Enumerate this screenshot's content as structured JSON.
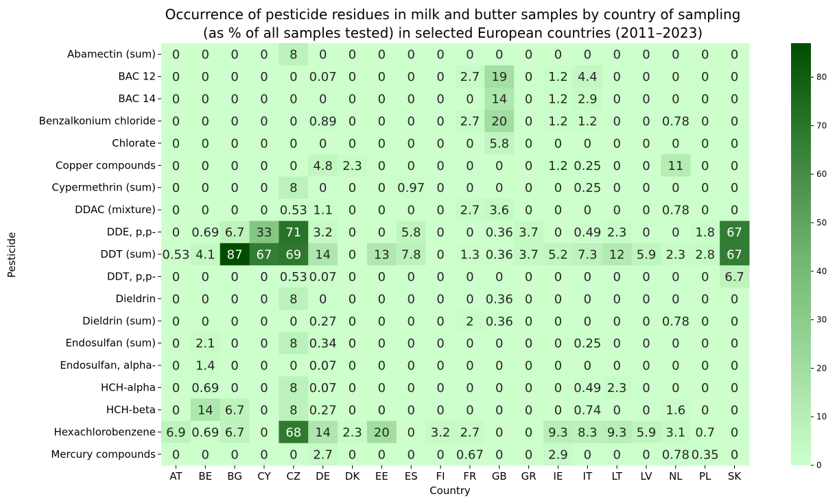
{
  "chart_data": {
    "type": "heatmap",
    "title": "Occurrence of pesticide residues in milk and butter samples by country of sampling",
    "subtitle": "(as % of all samples tested) in selected European countries (2011–2023)",
    "xlabel": "Country",
    "ylabel": "Pesticide",
    "x": [
      "AT",
      "BE",
      "BG",
      "CY",
      "CZ",
      "DE",
      "DK",
      "EE",
      "ES",
      "FI",
      "FR",
      "GB",
      "GR",
      "IE",
      "IT",
      "LT",
      "LV",
      "NL",
      "PL",
      "SK"
    ],
    "y": [
      "Abamectin (sum)",
      "BAC 12",
      "BAC 14",
      "Benzalkonium chloride",
      "Chlorate",
      "Copper compounds",
      "Cypermethrin (sum)",
      "DDAC (mixture)",
      "DDE, p,p-",
      "DDT (sum)",
      "DDT, p,p-",
      "Dieldrin",
      "Dieldrin (sum)",
      "Endosulfan (sum)",
      "Endosulfan, alpha-",
      "HCH-alpha",
      "HCH-beta",
      "Hexachlorobenzene",
      "Mercury compounds"
    ],
    "values": [
      [
        0,
        0,
        0,
        0,
        8,
        0,
        0,
        0,
        0,
        0,
        0,
        0,
        0,
        0,
        0,
        0,
        0,
        0,
        0,
        0
      ],
      [
        0,
        0,
        0,
        0,
        0,
        0.07,
        0,
        0,
        0,
        0,
        2.7,
        19,
        0,
        1.2,
        4.4,
        0,
        0,
        0,
        0,
        0
      ],
      [
        0,
        0,
        0,
        0,
        0,
        0,
        0,
        0,
        0,
        0,
        0,
        14,
        0,
        1.2,
        2.9,
        0,
        0,
        0,
        0,
        0
      ],
      [
        0,
        0,
        0,
        0,
        0,
        0.89,
        0,
        0,
        0,
        0,
        2.7,
        20,
        0,
        1.2,
        1.2,
        0,
        0,
        0.78,
        0,
        0
      ],
      [
        0,
        0,
        0,
        0,
        0,
        0,
        0,
        0,
        0,
        0,
        0,
        5.8,
        0,
        0,
        0,
        0,
        0,
        0,
        0,
        0
      ],
      [
        0,
        0,
        0,
        0,
        0,
        4.8,
        2.3,
        0,
        0,
        0,
        0,
        0,
        0,
        1.2,
        0.25,
        0,
        0,
        11,
        0,
        0
      ],
      [
        0,
        0,
        0,
        0,
        8,
        0,
        0,
        0,
        0.97,
        0,
        0,
        0,
        0,
        0,
        0.25,
        0,
        0,
        0,
        0,
        0
      ],
      [
        0,
        0,
        0,
        0,
        0.53,
        1.1,
        0,
        0,
        0,
        0,
        2.7,
        3.6,
        0,
        0,
        0,
        0,
        0,
        0.78,
        0,
        0
      ],
      [
        0,
        0.69,
        6.7,
        33,
        71,
        3.2,
        0,
        0,
        5.8,
        0,
        0,
        0.36,
        3.7,
        0,
        0.49,
        2.3,
        0,
        0,
        1.8,
        67
      ],
      [
        0.53,
        4.1,
        87,
        67,
        69,
        14,
        0,
        13,
        7.8,
        0,
        1.3,
        0.36,
        3.7,
        5.2,
        7.3,
        12,
        5.9,
        2.3,
        2.8,
        67
      ],
      [
        0,
        0,
        0,
        0,
        0.53,
        0.07,
        0,
        0,
        0,
        0,
        0,
        0,
        0,
        0,
        0,
        0,
        0,
        0,
        0,
        6.7
      ],
      [
        0,
        0,
        0,
        0,
        8,
        0,
        0,
        0,
        0,
        0,
        0,
        0.36,
        0,
        0,
        0,
        0,
        0,
        0,
        0,
        0
      ],
      [
        0,
        0,
        0,
        0,
        0,
        0.27,
        0,
        0,
        0,
        0,
        2,
        0.36,
        0,
        0,
        0,
        0,
        0,
        0.78,
        0,
        0
      ],
      [
        0,
        2.1,
        0,
        0,
        8,
        0.34,
        0,
        0,
        0,
        0,
        0,
        0,
        0,
        0,
        0.25,
        0,
        0,
        0,
        0,
        0
      ],
      [
        0,
        1.4,
        0,
        0,
        0,
        0.07,
        0,
        0,
        0,
        0,
        0,
        0,
        0,
        0,
        0,
        0,
        0,
        0,
        0,
        0
      ],
      [
        0,
        0.69,
        0,
        0,
        8,
        0.07,
        0,
        0,
        0,
        0,
        0,
        0,
        0,
        0,
        0.49,
        2.3,
        0,
        0,
        0,
        0
      ],
      [
        0,
        14,
        6.7,
        0,
        8,
        0.27,
        0,
        0,
        0,
        0,
        0,
        0,
        0,
        0,
        0.74,
        0,
        0,
        1.6,
        0,
        0
      ],
      [
        6.9,
        0.69,
        6.7,
        0,
        68,
        14,
        2.3,
        20,
        0,
        3.2,
        2.7,
        0,
        0,
        9.3,
        8.3,
        9.3,
        5.9,
        3.1,
        0.7,
        0
      ],
      [
        0,
        0,
        0,
        0,
        0,
        2.7,
        0,
        0,
        0,
        0,
        0.67,
        0,
        0,
        2.9,
        0,
        0,
        0,
        0.78,
        0.35,
        0
      ]
    ],
    "value_range": [
      0,
      87
    ],
    "colorbar_ticks": [
      0,
      10,
      20,
      30,
      40,
      50,
      60,
      70,
      80
    ],
    "colors": {
      "low": "#ccffcc",
      "mid": "#6fb46f",
      "high": "#004d00"
    },
    "annotations": true
  }
}
